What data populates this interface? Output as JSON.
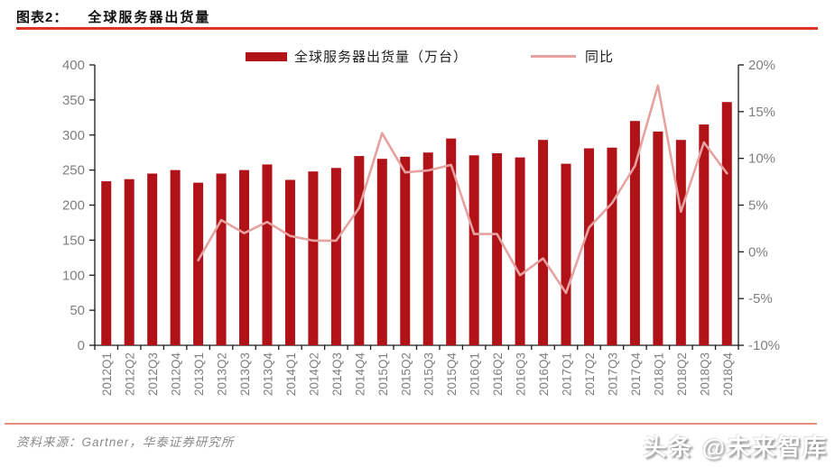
{
  "header": {
    "figure_label": "图表2：",
    "figure_title": "全球服务器出货量"
  },
  "legend": {
    "bars_label": "全球服务器出货量（万台）",
    "line_label": "同比"
  },
  "footer": {
    "source": "资料来源：Gartner，华泰证券研究所",
    "watermark": "头条 @未来智库"
  },
  "colors": {
    "bar": "#b11217",
    "line": "#e6a2a1",
    "title_rule": "#e03422",
    "footer_rule": "#e5907e",
    "axis": "#1a1a1a",
    "tick_text": "#7f7f7f"
  },
  "chart_data": {
    "type": "bar",
    "subtype": "bar+line dual axis",
    "title": "全球服务器出货量",
    "categories": [
      "2012Q1",
      "2012Q2",
      "2012Q3",
      "2012Q4",
      "2013Q1",
      "2013Q2",
      "2013Q3",
      "2013Q4",
      "2014Q1",
      "2014Q2",
      "2014Q3",
      "2014Q4",
      "2015Q1",
      "2015Q2",
      "2015Q3",
      "2015Q4",
      "2016Q1",
      "2016Q2",
      "2016Q3",
      "2016Q4",
      "2017Q1",
      "2017Q2",
      "2017Q3",
      "2017Q4",
      "2018Q1",
      "2018Q2",
      "2018Q3",
      "2018Q4"
    ],
    "series": [
      {
        "name": "全球服务器出货量（万台）",
        "type": "bar",
        "axis": "left",
        "values": [
          234,
          237,
          245,
          250,
          232,
          245,
          250,
          258,
          236,
          248,
          253,
          270,
          266,
          269,
          275,
          295,
          271,
          274,
          268,
          293,
          259,
          281,
          282,
          320,
          305,
          293,
          315,
          347
        ]
      },
      {
        "name": "同比",
        "type": "line",
        "axis": "right",
        "values": [
          null,
          null,
          null,
          null,
          -0.9,
          3.4,
          2.0,
          3.2,
          1.7,
          1.2,
          1.2,
          4.7,
          12.7,
          8.5,
          8.7,
          9.3,
          1.9,
          1.9,
          -2.5,
          -0.7,
          -4.4,
          2.6,
          5.2,
          9.2,
          17.8,
          4.3,
          11.7,
          8.4
        ]
      }
    ],
    "left_axis": {
      "min": 0,
      "max": 400,
      "step": 50,
      "ticks": [
        "400",
        "350",
        "300",
        "250",
        "200",
        "150",
        "100",
        "50",
        "0"
      ]
    },
    "right_axis": {
      "min": -10,
      "max": 20,
      "step": 5,
      "ticks": [
        "20%",
        "15%",
        "10%",
        "5%",
        "0%",
        "-5%",
        "-10%"
      ]
    },
    "legend_position": "top-center",
    "grid": false,
    "x_tick_label_rotation": -90
  }
}
